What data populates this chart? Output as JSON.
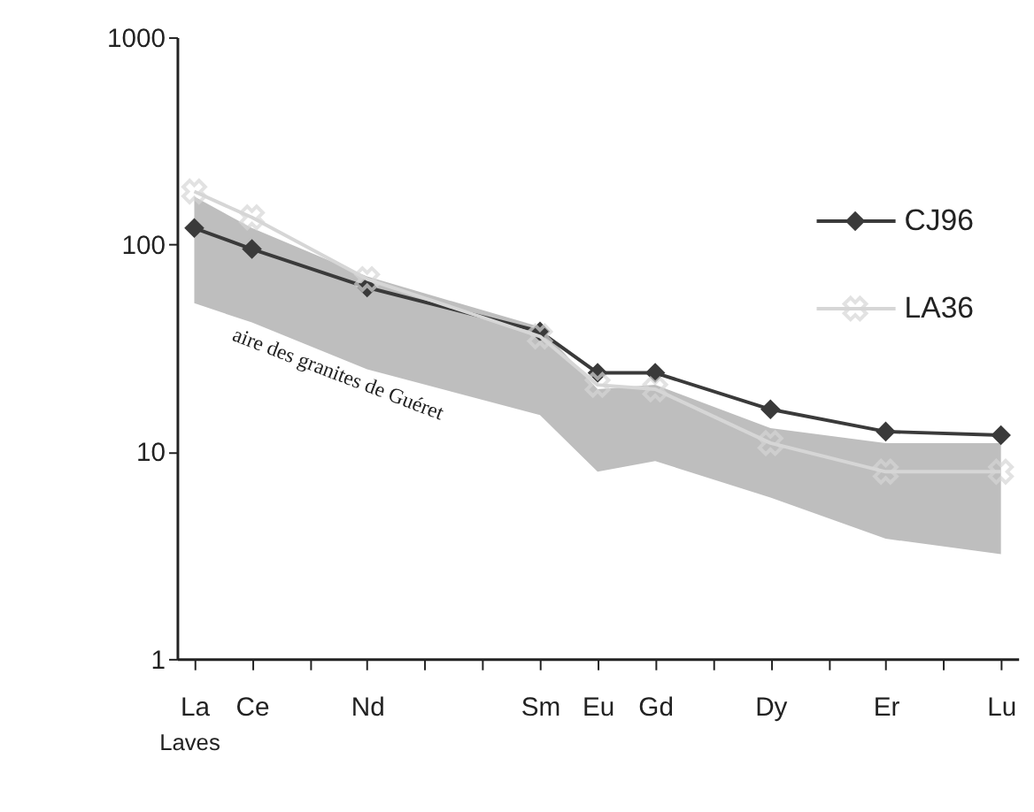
{
  "chart_data": {
    "type": "line",
    "categories": [
      "La",
      "Ce",
      null,
      "Nd",
      null,
      null,
      "Sm",
      "Eu",
      "Gd",
      null,
      "Dy",
      null,
      "Er",
      null,
      "Lu"
    ],
    "series": [
      {
        "color": "#bebebe",
        "values": [
          null,
          null,
          null,
          null,
          null,
          null,
          null,
          null,
          null,
          null,
          null,
          null,
          null,
          null,
          null
        ],
        "lower": [
          52,
          42,
          null,
          25,
          null,
          null,
          15,
          8,
          9,
          null,
          6,
          null,
          3.8,
          null,
          3.2
        ],
        "upper": [
          170,
          120,
          null,
          70,
          null,
          null,
          40,
          20,
          21,
          null,
          13,
          null,
          11,
          null,
          11
        ]
      },
      {
        "name": "CJ96",
        "color": "#3a3a3a",
        "marker": "diamond",
        "values": [
          120,
          95,
          null,
          62,
          null,
          null,
          38,
          24,
          24,
          null,
          16,
          null,
          12.5,
          null,
          12
        ]
      },
      {
        "name": "LA36",
        "color": "#d6d6d6",
        "marker": "cross",
        "values": [
          180,
          135,
          null,
          68,
          null,
          null,
          36,
          21,
          20,
          null,
          11,
          null,
          8,
          null,
          8
        ]
      }
    ],
    "log": "y",
    "ylim": [
      1,
      1000
    ],
    "yticks": [
      1,
      10,
      100,
      {
        "value": 1000,
        "label": "1000"
      }
    ],
    "grid": false,
    "legend": "right",
    "annotations": [
      "aire des granites de Guéret",
      "Laves"
    ]
  }
}
